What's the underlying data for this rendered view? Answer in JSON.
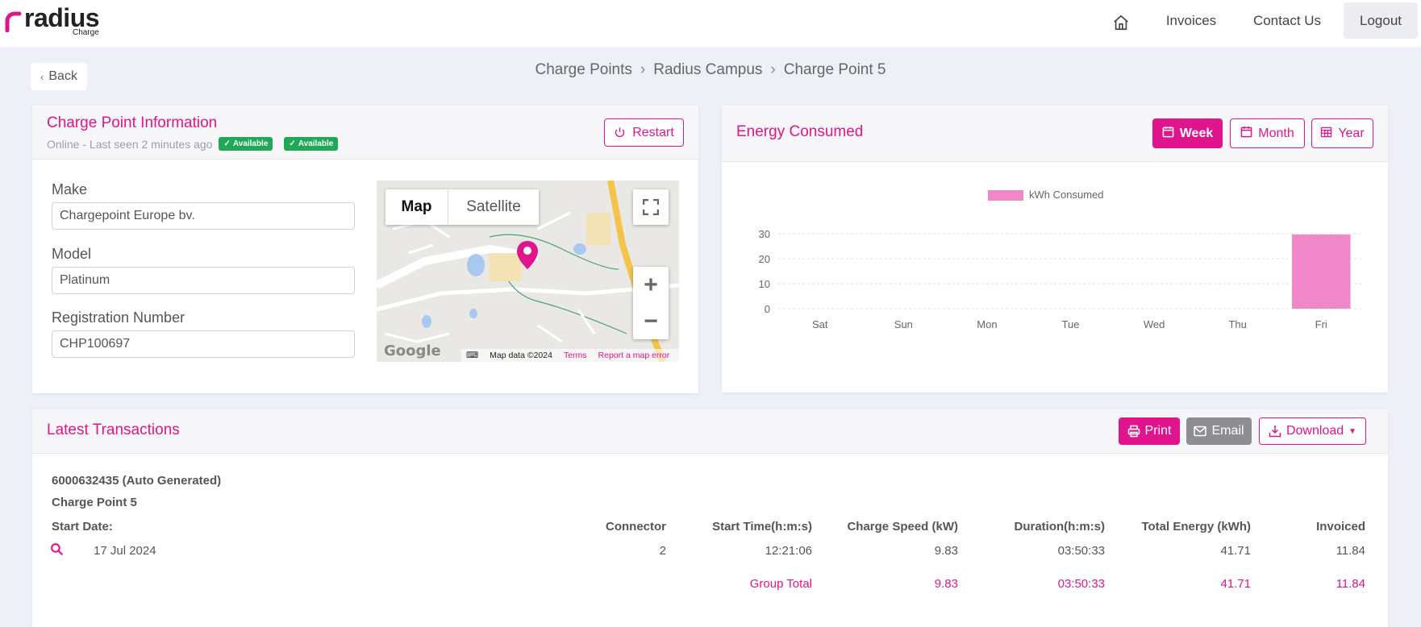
{
  "nav": {
    "brand": "radius",
    "brand_sub": "Charge",
    "invoices": "Invoices",
    "contact": "Contact Us",
    "logout": "Logout"
  },
  "back": "Back",
  "breadcrumb": [
    "Charge Points",
    "Radius Campus",
    "Charge Point 5"
  ],
  "info": {
    "title": "Charge Point Information",
    "status": "Online - Last seen 2 minutes ago",
    "badges": [
      "Available",
      "Available"
    ],
    "restart": "Restart",
    "make_label": "Make",
    "make_value": "Chargepoint Europe bv.",
    "model_label": "Model",
    "model_value": "Platinum",
    "reg_label": "Registration Number",
    "reg_value": "CHP100697"
  },
  "map": {
    "map_tab": "Map",
    "satellite_tab": "Satellite",
    "data_text": "Map data ©2024",
    "terms": "Terms",
    "report": "Report a map error",
    "google": "Google"
  },
  "energy": {
    "title": "Energy Consumed",
    "week": "Week",
    "month": "Month",
    "year": "Year"
  },
  "chart_data": {
    "type": "bar",
    "categories": [
      "Sat",
      "Sun",
      "Mon",
      "Tue",
      "Wed",
      "Thu",
      "Fri"
    ],
    "series": [
      {
        "name": "kWh Consumed",
        "values": [
          0,
          0,
          0,
          0,
          0,
          0,
          29.7
        ],
        "color": "#f087c9"
      }
    ],
    "yticks": [
      0,
      10,
      20,
      30
    ],
    "ylim": [
      0,
      30
    ],
    "grid": true,
    "legend": "top"
  },
  "transactions": {
    "title": "Latest Transactions",
    "print": "Print",
    "email": "Email",
    "download": "Download",
    "id_line": "6000632435 (Auto Generated)",
    "cp_line": "Charge Point 5",
    "headers": {
      "start_date": "Start Date:",
      "connector": "Connector",
      "start_time": "Start Time(h:m:s)",
      "speed": "Charge Speed (kW)",
      "duration": "Duration(h:m:s)",
      "energy": "Total Energy (kWh)",
      "invoiced": "Invoiced"
    },
    "row": {
      "date": "17 Jul 2024",
      "connector": "2",
      "start_time": "12:21:06",
      "speed": "9.83",
      "duration": "03:50:33",
      "energy": "41.71",
      "invoiced": "11.84"
    },
    "group": {
      "label": "Group Total",
      "speed": "9.83",
      "duration": "03:50:33",
      "energy": "41.71",
      "invoiced": "11.84"
    }
  }
}
